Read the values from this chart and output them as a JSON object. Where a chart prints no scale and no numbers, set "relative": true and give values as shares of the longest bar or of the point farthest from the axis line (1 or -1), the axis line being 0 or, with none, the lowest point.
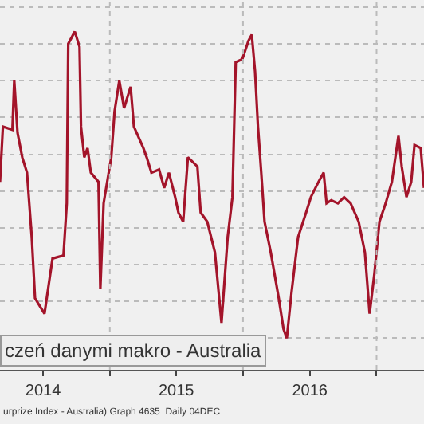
{
  "chart_data": {
    "type": "line",
    "title": "czeń danymi makro - Australia",
    "annotations": [
      "urprize Index - Australia) Graph 4635  Daily 04DEC"
    ],
    "relative": true,
    "grid": true,
    "color": "#a3142a",
    "x": [
      "2014-03-06",
      "2014-03-14",
      "2014-04-09",
      "2014-04-14",
      "2014-04-23",
      "2014-05-06",
      "2014-05-19",
      "2014-06-01",
      "2014-06-10",
      "2014-07-06",
      "2014-07-28",
      "2014-08-27",
      "2014-09-05",
      "2014-09-09",
      "2014-09-27",
      "2014-10-10",
      "2014-10-14",
      "2014-10-23",
      "2014-11-01",
      "2014-11-10",
      "2014-12-01",
      "2014-12-06",
      "2014-12-15",
      "2015-01-05",
      "2015-01-14",
      "2015-01-27",
      "2015-02-09",
      "2015-02-27",
      "2015-03-08",
      "2015-04-03",
      "2015-04-12",
      "2015-04-25",
      "2015-05-16",
      "2015-05-30",
      "2015-06-12",
      "2015-06-29",
      "2015-07-08",
      "2015-07-21",
      "2015-08-03",
      "2015-08-29",
      "2015-09-07",
      "2015-09-25",
      "2015-10-16",
      "2015-11-03",
      "2015-11-20",
      "2015-12-03",
      "2015-12-12",
      "2015-12-30",
      "2016-01-16",
      "2016-01-25",
      "2016-02-03",
      "2016-02-11",
      "2016-02-20",
      "2016-02-29",
      "2016-03-17",
      "2016-04-08",
      "2016-04-21",
      "2016-04-30",
      "2016-05-13",
      "2016-05-31",
      "2016-06-22",
      "2016-07-05",
      "2016-07-26",
      "2016-08-09",
      "2016-08-17",
      "2016-08-30",
      "2016-09-17",
      "2016-10-04",
      "2016-10-22",
      "2016-11-13",
      "2016-11-30",
      "2016-12-13",
      "2016-12-26",
      "2017-01-09",
      "2017-01-26",
      "2017-02-12",
      "2017-03-02",
      "2017-03-11",
      "2017-03-24",
      "2017-04-06",
      "2017-04-15",
      "2017-05-02",
      "2017-05-11"
    ],
    "values": [
      0.51,
      0.69,
      0.68,
      0.84,
      0.67,
      0.59,
      0.54,
      0.33,
      0.13,
      0.08,
      0.26,
      0.27,
      0.44,
      0.96,
      1,
      0.95,
      0.69,
      0.59,
      0.62,
      0.54,
      0.51,
      0.16,
      0.44,
      0.59,
      0.74,
      0.84,
      0.75,
      0.82,
      0.69,
      0.62,
      0.59,
      0.54,
      0.55,
      0.49,
      0.54,
      0.46,
      0.41,
      0.38,
      0.59,
      0.56,
      0.41,
      0.38,
      0.28,
      0.05,
      0.33,
      0.46,
      0.9,
      0.91,
      0.97,
      0.99,
      0.87,
      0.69,
      0.54,
      0.38,
      0.28,
      0.13,
      0.03,
      0,
      0.15,
      0.33,
      0.41,
      0.46,
      0.51,
      0.54,
      0.44,
      0.45,
      0.44,
      0.46,
      0.44,
      0.38,
      0.28,
      0.08,
      0.21,
      0.38,
      0.44,
      0.51,
      0.66,
      0.56,
      0.46,
      0.51,
      0.63,
      0.62,
      0.49
    ],
    "xlim": [
      "2014-03-06",
      "2017-05-11"
    ],
    "xticks": [
      {
        "value": "2014-07-02",
        "label": "2014"
      },
      {
        "value": "2015-01-01",
        "label": null
      },
      {
        "value": "2015-07-02",
        "label": "2015"
      },
      {
        "value": "2016-01-01",
        "label": null
      },
      {
        "value": "2016-07-02",
        "label": "2016"
      },
      {
        "value": "2017-01-01",
        "label": null
      }
    ]
  }
}
